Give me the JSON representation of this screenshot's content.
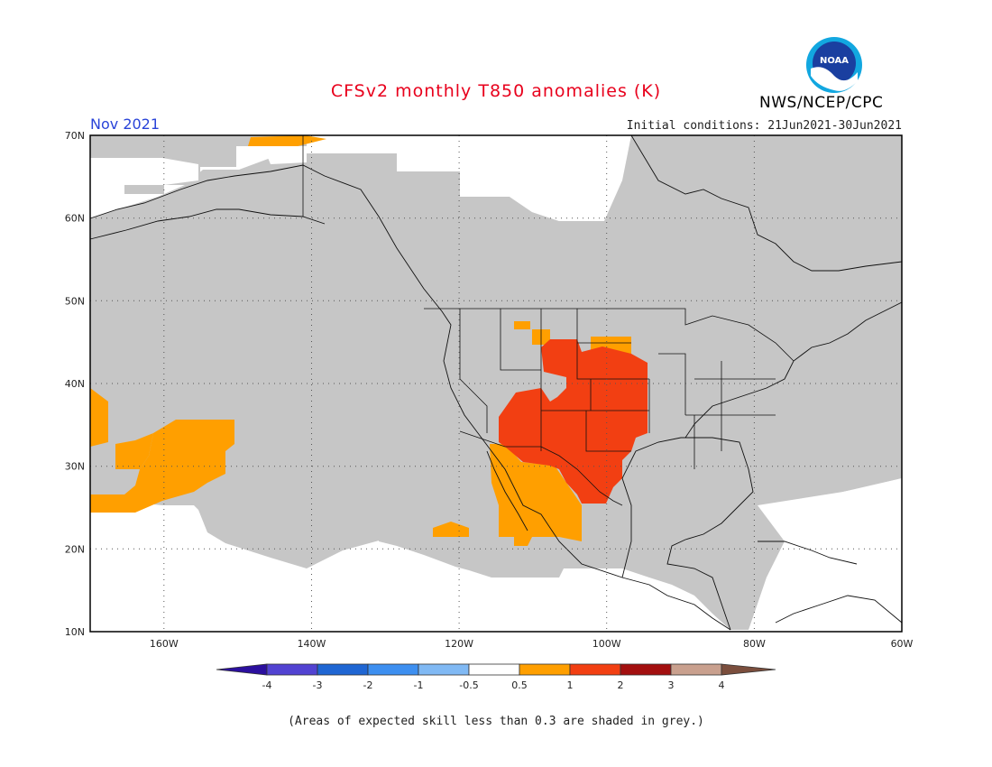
{
  "header": {
    "title": "CFSv2 monthly T850 anomalies (K)",
    "target_month": "Nov 2021",
    "initial_conditions": "Initial conditions: 21Jun2021-30Jun2021",
    "agency": "NWS/NCEP/CPC",
    "logo_text": "NOAA"
  },
  "map": {
    "region": "North America / Northeast Pacific",
    "lon_range": [
      -170,
      -60
    ],
    "lat_range": [
      10,
      70
    ],
    "lat_labels": [
      "70N",
      "60N",
      "50N",
      "40N",
      "30N",
      "20N",
      "10N"
    ],
    "lon_labels": [
      "160W",
      "140W",
      "120W",
      "100W",
      "80W",
      "60W"
    ],
    "grid": "dotted",
    "shading": {
      "low_skill_color": "#c6c6c6",
      "near_normal_color": "#ffffff",
      "anomaly_regions": [
        {
          "category": "0.5 to 1",
          "color": "#ff9f00",
          "area": "central Pacific southwest of California"
        },
        {
          "category": "0.5 to 1",
          "color": "#ff9f00",
          "area": "Baja California and northwestern Mexico"
        },
        {
          "category": "1 to 2",
          "color": "#f23f12",
          "area": "southwestern and central United States"
        }
      ]
    }
  },
  "colorbar": {
    "ticks": [
      "-4",
      "-3",
      "-2",
      "-1",
      "-0.5",
      "0.5",
      "1",
      "2",
      "3",
      "4"
    ],
    "colors": [
      "#2b0f9e",
      "#5243d2",
      "#1f66d3",
      "#3d8ff0",
      "#80b9f4",
      "#ffffff",
      "#ff9f00",
      "#f23f12",
      "#a30f0f",
      "#c9a08e",
      "#7b4e3d"
    ]
  },
  "footnote": "(Areas of expected skill less than 0.3 are shaded in grey.)"
}
